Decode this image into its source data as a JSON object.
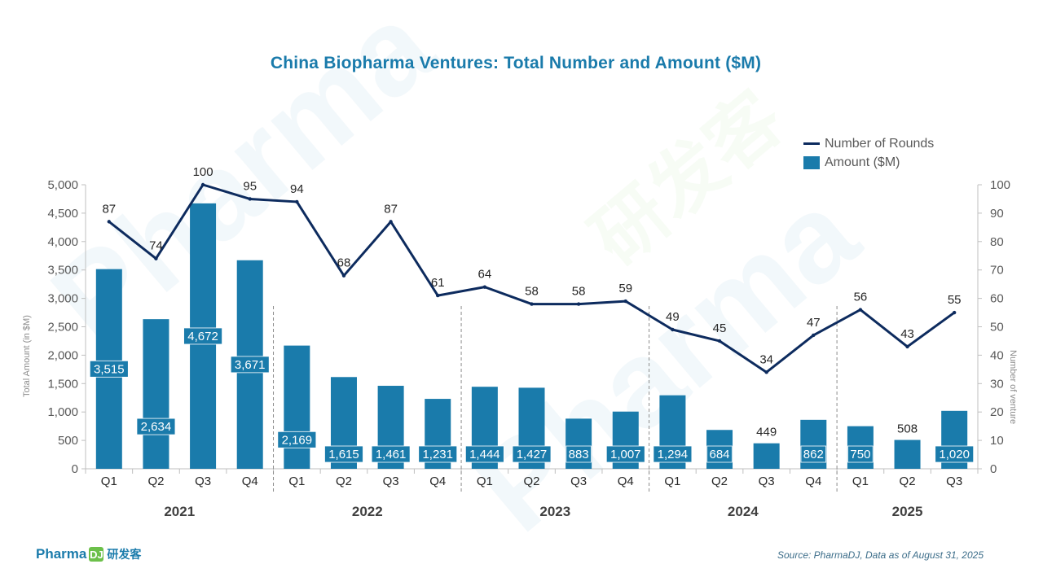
{
  "chart_data": {
    "type": "bar",
    "title": "China Biopharma Ventures: Total Number and Amount ($M)",
    "categories": [
      "Q1",
      "Q2",
      "Q3",
      "Q4",
      "Q1",
      "Q2",
      "Q3",
      "Q4",
      "Q1",
      "Q2",
      "Q3",
      "Q4",
      "Q1",
      "Q2",
      "Q3",
      "Q4",
      "Q1",
      "Q2",
      "Q3"
    ],
    "groups": [
      {
        "label": "2021",
        "count": 4
      },
      {
        "label": "2022",
        "count": 4
      },
      {
        "label": "2023",
        "count": 4
      },
      {
        "label": "2024",
        "count": 4
      },
      {
        "label": "2025",
        "count": 3
      }
    ],
    "series": [
      {
        "name": "Amount ($M)",
        "kind": "bar",
        "axis": "left",
        "color": "#1a7bab",
        "values": [
          3515,
          2634,
          4672,
          3671,
          2169,
          1615,
          1461,
          1231,
          1444,
          1427,
          883,
          1007,
          1294,
          684,
          449,
          862,
          750,
          508,
          1020
        ],
        "labels": [
          "3,515",
          "2,634",
          "4,672",
          "3,671",
          "2,169",
          "1,615",
          "1,461",
          "1,231",
          "1,444",
          "1,427",
          "883",
          "1,007",
          "1,294",
          "684",
          "449",
          "862",
          "750",
          "508",
          "1,020"
        ]
      },
      {
        "name": "Number of Rounds",
        "kind": "line",
        "axis": "right",
        "color": "#0d2b5e",
        "values": [
          87,
          74,
          100,
          95,
          94,
          68,
          87,
          61,
          64,
          58,
          58,
          59,
          49,
          45,
          34,
          47,
          56,
          43,
          55
        ]
      }
    ],
    "ylabel": "Total Amount (in $M)",
    "y2label": "Number of venture",
    "ylim": [
      0,
      5000
    ],
    "y2lim": [
      0,
      100
    ],
    "yticks": [
      "0",
      "500",
      "1,000",
      "1,500",
      "2,000",
      "2,500",
      "3,000",
      "3,500",
      "4,000",
      "4,500",
      "5,000"
    ],
    "y2ticks": [
      "0",
      "10",
      "20",
      "30",
      "40",
      "50",
      "60",
      "70",
      "80",
      "90",
      "100"
    ],
    "legend": "top-right",
    "grid": false
  },
  "logo": {
    "text": "Pharma",
    "mark": "DJ",
    "cn": "研发客"
  },
  "source": "Source: PharmaDJ, Data as of August 31, 2025",
  "watermark": {
    "text": "Pharma",
    "cn": "研发客"
  }
}
